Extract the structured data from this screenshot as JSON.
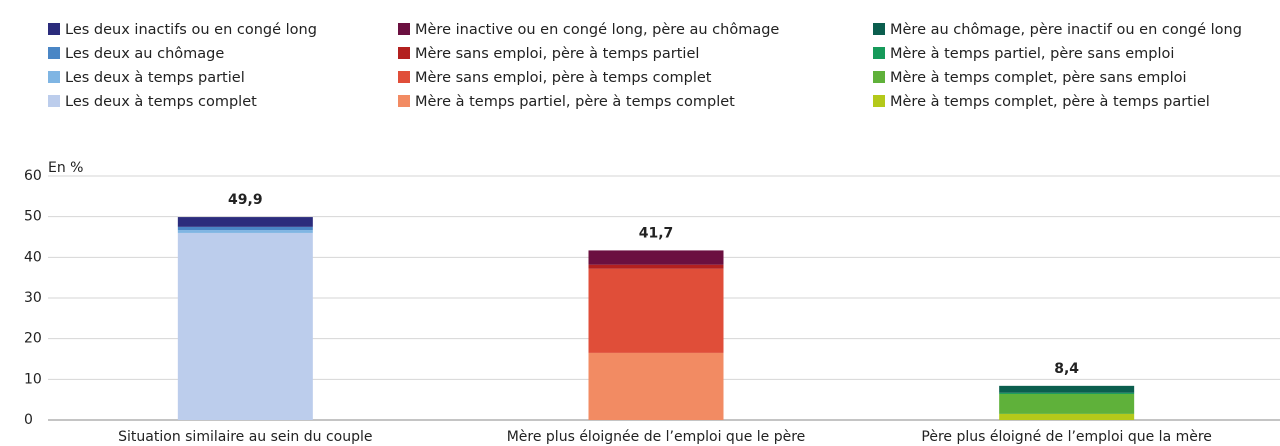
{
  "chart_data": {
    "type": "bar",
    "stacked": true,
    "y_label": "En %",
    "categories": [
      "Situation similaire au sein du couple",
      "Mère plus éloignée de l’emploi que le père",
      "Père plus éloigné de l’emploi que la mère"
    ],
    "series": [
      {
        "name": "Les deux inactifs ou en congé long",
        "color": "#2b2c7c",
        "values": [
          2.4,
          0,
          0
        ]
      },
      {
        "name": "Les deux au chômage",
        "color": "#4a86c5",
        "values": [
          0.8,
          0,
          0
        ]
      },
      {
        "name": "Les deux à temps partiel",
        "color": "#7fb5e3",
        "values": [
          0.7,
          0,
          0
        ]
      },
      {
        "name": "Les deux à temps complet",
        "color": "#bccdec",
        "values": [
          46,
          0,
          0
        ]
      },
      {
        "name": "Mère inactive ou en congé long, père au chômage",
        "color": "#6b1040",
        "values": [
          0,
          3.5,
          0
        ]
      },
      {
        "name": "Mère sans emploi, père à temps partiel",
        "color": "#b3201f",
        "values": [
          0,
          1.0,
          0
        ]
      },
      {
        "name": "Mère sans emploi, père à temps complet",
        "color": "#e04e39",
        "values": [
          0,
          20.7,
          0
        ]
      },
      {
        "name": "Mère à temps partiel, père à temps complet",
        "color": "#f28b63",
        "values": [
          0,
          16.5,
          0
        ]
      },
      {
        "name": "Mère au chômage, père inactif ou en congé long",
        "color": "#0b5e4e",
        "values": [
          0,
          0,
          1.7
        ]
      },
      {
        "name": "Mère à temps partiel, père sans emploi",
        "color": "#169a5a",
        "values": [
          0,
          0,
          0.3
        ]
      },
      {
        "name": "Mère à temps complet, père sans emploi",
        "color": "#5fb13a",
        "values": [
          0,
          0,
          4.9
        ]
      },
      {
        "name": "Mère à temps complet, père à temps partiel",
        "color": "#b4c91a",
        "values": [
          0,
          0,
          1.5
        ]
      }
    ],
    "totals": {
      "values": [
        49.9,
        41.7,
        8.4
      ],
      "value_labels": [
        "49,9",
        "41,7",
        "8,4"
      ]
    },
    "ylim": [
      0,
      60
    ],
    "yticks": [
      0,
      10,
      20,
      30,
      40,
      50,
      60
    ],
    "grid": true
  }
}
